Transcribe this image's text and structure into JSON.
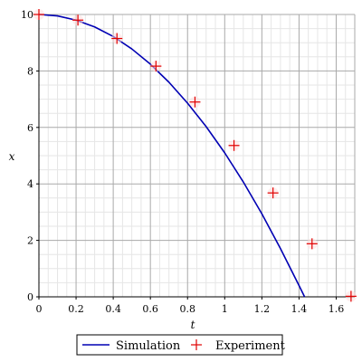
{
  "chart_data": {
    "type": "line",
    "xlabel": "t",
    "ylabel": "x",
    "xlim": [
      0,
      1.7
    ],
    "ylim": [
      0,
      10
    ],
    "xticks": [
      0,
      0.2,
      0.4,
      0.6,
      0.8,
      1,
      1.2,
      1.4,
      1.6
    ],
    "xtick_labels": [
      "0",
      "0.2",
      "0.4",
      "0.6",
      "0.8",
      "1",
      "1.2",
      "1.4",
      "1.6"
    ],
    "yticks": [
      0,
      2,
      4,
      6,
      8,
      10
    ],
    "ytick_labels": [
      "0",
      "2",
      "4",
      "6",
      "8",
      "10"
    ],
    "grid": true,
    "legend_position": "bottom",
    "series": [
      {
        "name": "Simulation",
        "kind": "line",
        "color": "#0000b3",
        "x": [
          0,
          0.1,
          0.2,
          0.3,
          0.4,
          0.5,
          0.6,
          0.7,
          0.8,
          0.9,
          1.0,
          1.1,
          1.2,
          1.3,
          1.4,
          1.43
        ],
        "y": [
          10,
          9.95,
          9.8,
          9.56,
          9.22,
          8.78,
          8.24,
          7.6,
          6.86,
          6.03,
          5.1,
          4.07,
          2.94,
          1.71,
          0.4,
          0
        ]
      },
      {
        "name": "Experiment",
        "kind": "scatter",
        "marker": "plus",
        "color": "#e00000",
        "x": [
          0,
          0.21,
          0.42,
          0.63,
          0.84,
          1.05,
          1.26,
          1.47,
          1.68
        ],
        "y": [
          10,
          9.8,
          9.15,
          8.17,
          6.9,
          5.36,
          3.68,
          1.88,
          0.02
        ]
      }
    ]
  }
}
